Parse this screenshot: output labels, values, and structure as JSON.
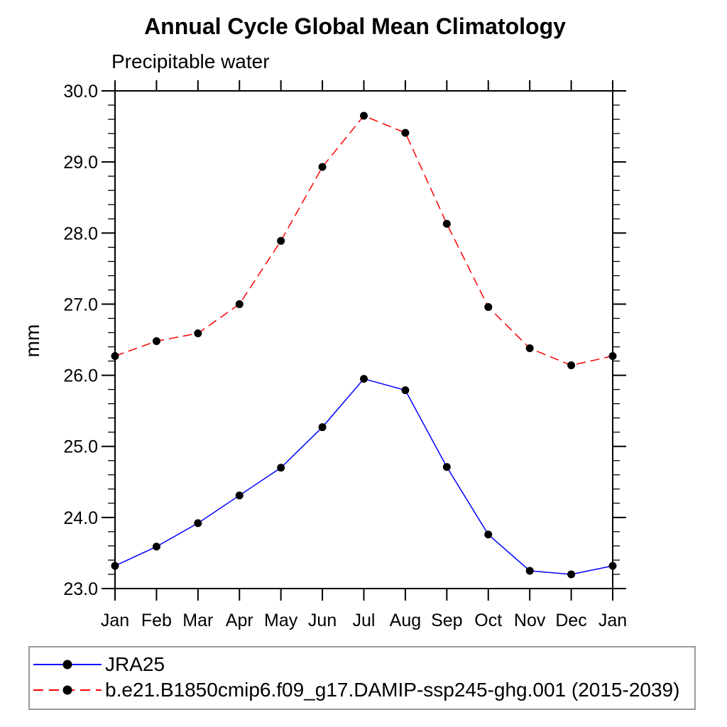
{
  "chart_data": {
    "type": "line",
    "title": "Annual Cycle Global Mean Climatology",
    "subtitle": "Precipitable water",
    "xlabel": "",
    "ylabel": "mm",
    "categories": [
      "Jan",
      "Feb",
      "Mar",
      "Apr",
      "May",
      "Jun",
      "Jul",
      "Aug",
      "Sep",
      "Oct",
      "Nov",
      "Dec",
      "Jan"
    ],
    "ylim": [
      23.0,
      30.0
    ],
    "ytick_interval": 1.0,
    "yminor_interval": 0.2,
    "ytick_labels": [
      "23.0",
      "24.0",
      "25.0",
      "26.0",
      "27.0",
      "28.0",
      "29.0",
      "30.0"
    ],
    "grid": false,
    "legend_position": "bottom",
    "axis_color": "#000000",
    "series": [
      {
        "name": "JRA25",
        "color": "#0000ff",
        "line_style": "solid",
        "marker": "filled-circle",
        "marker_color": "#000000",
        "values": [
          23.32,
          23.59,
          23.92,
          24.31,
          24.7,
          25.27,
          25.95,
          25.79,
          24.71,
          23.76,
          23.25,
          23.2,
          23.32
        ]
      },
      {
        "name": "b.e21.B1850cmip6.f09_g17.DAMIP-ssp245-ghg.001 (2015-2039)",
        "color": "#ff0000",
        "line_style": "dashed",
        "marker": "filled-circle",
        "marker_color": "#000000",
        "values": [
          26.27,
          26.48,
          26.59,
          27.0,
          27.89,
          28.93,
          29.65,
          29.41,
          28.13,
          26.96,
          26.38,
          26.14,
          26.27
        ]
      }
    ]
  }
}
